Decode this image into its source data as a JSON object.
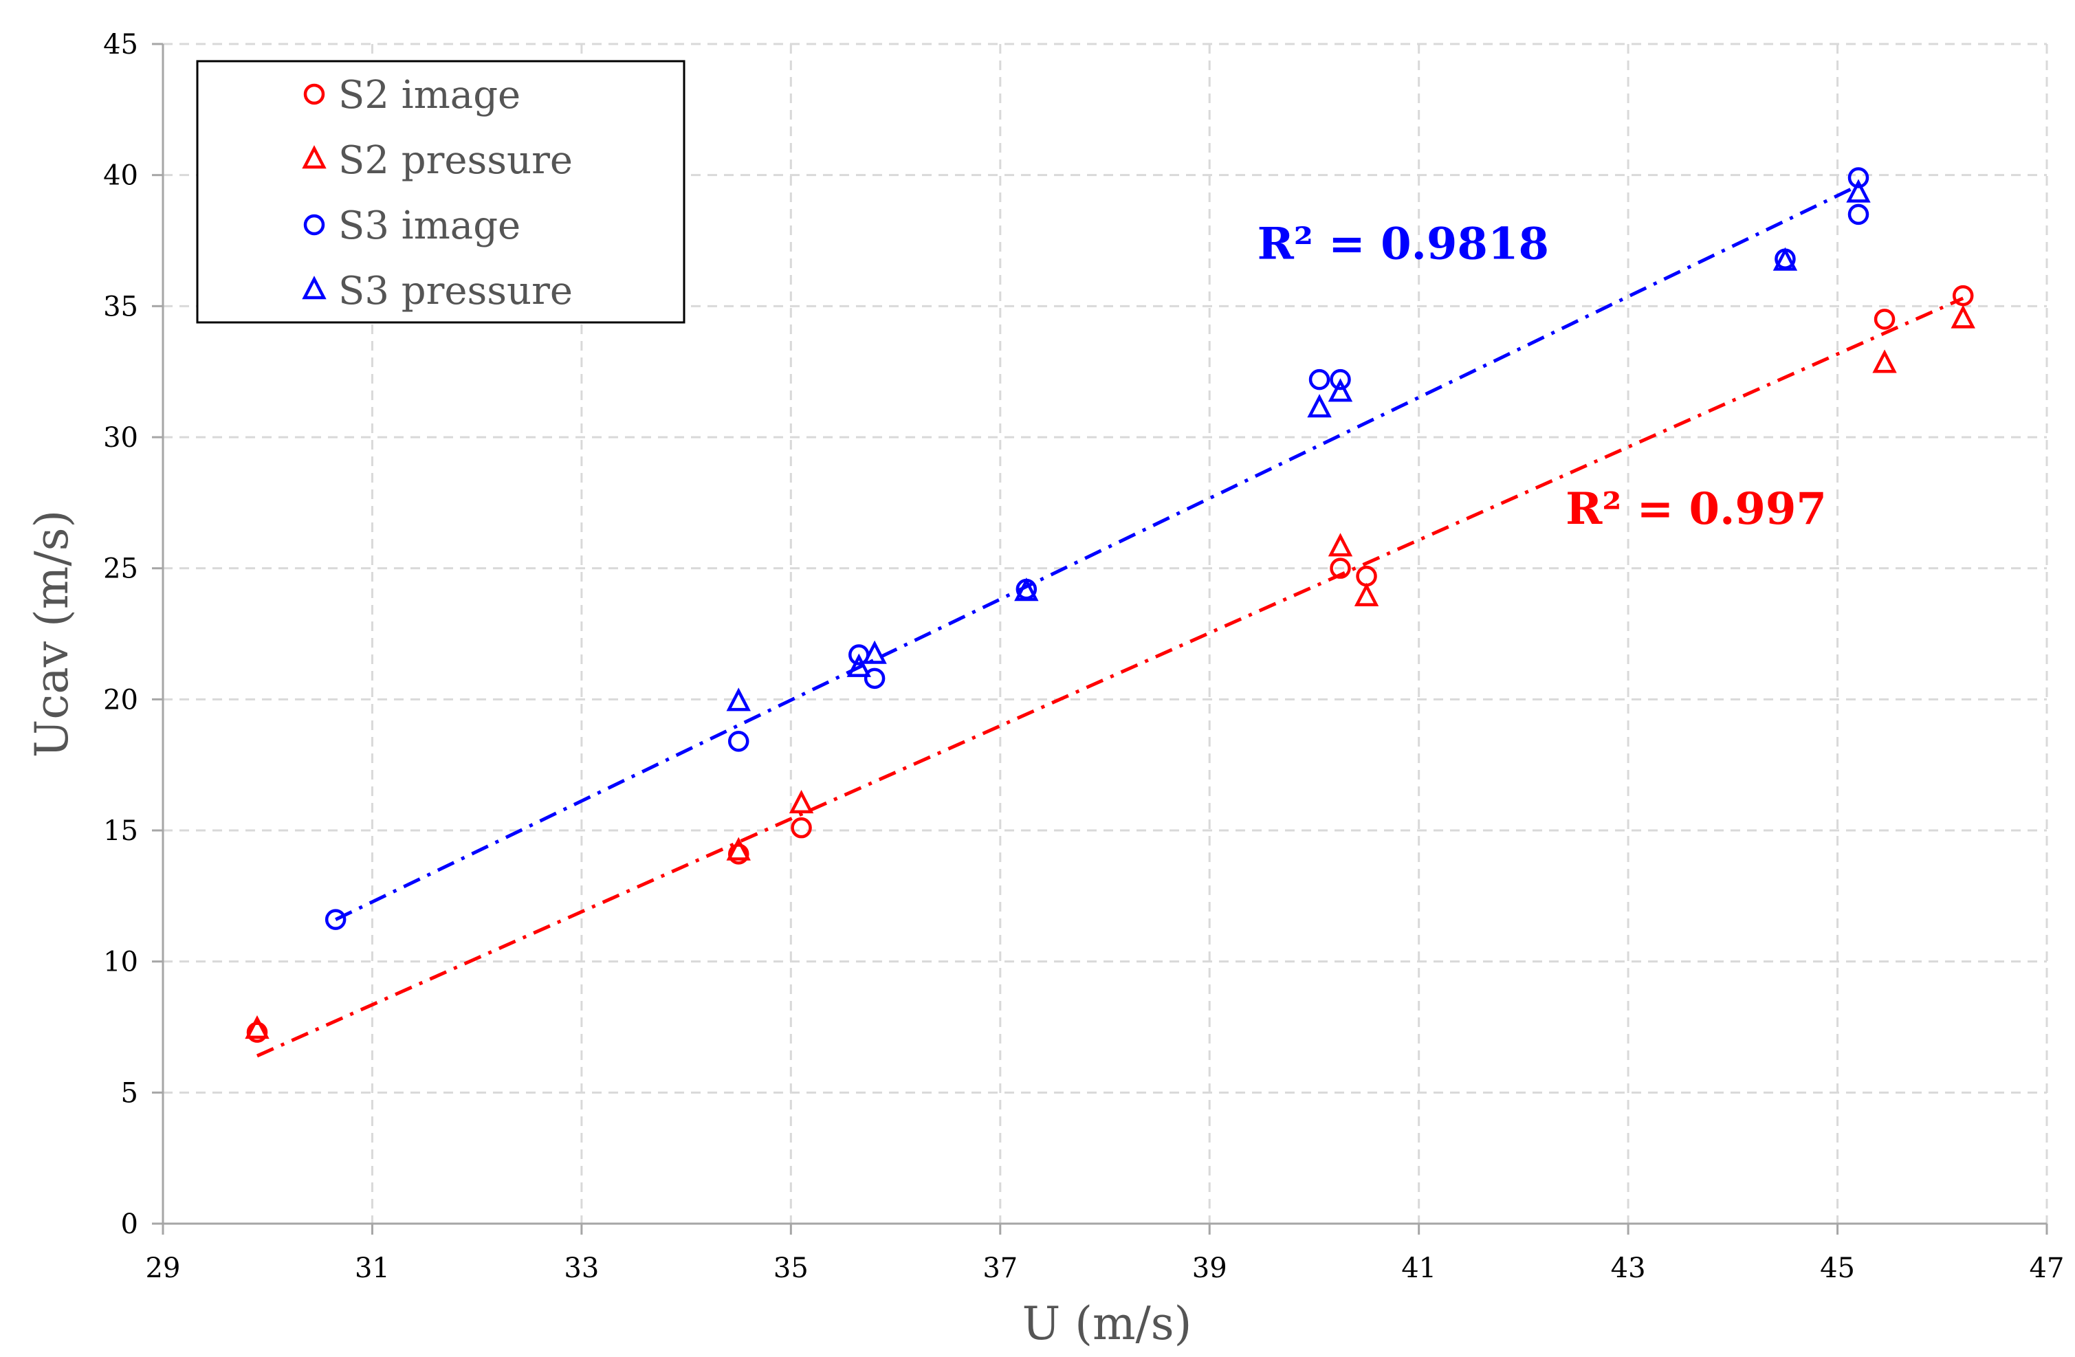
{
  "chart_data": {
    "type": "scatter",
    "xlabel": "U (m/s)",
    "ylabel": "Ucav  (m/s)",
    "xlim": [
      29,
      47
    ],
    "ylim": [
      0,
      45
    ],
    "xticks": [
      29,
      31,
      33,
      35,
      37,
      39,
      41,
      43,
      45,
      47
    ],
    "yticks": [
      0,
      5,
      10,
      15,
      20,
      25,
      30,
      35,
      40,
      45
    ],
    "grid": true,
    "legend_position": "top-left",
    "series": [
      {
        "name": "S2 image",
        "marker": "circle",
        "color": "#ff0000",
        "points": [
          [
            29.9,
            7.3
          ],
          [
            34.5,
            14.1
          ],
          [
            35.1,
            15.1
          ],
          [
            40.25,
            25.0
          ],
          [
            40.5,
            24.7
          ],
          [
            45.45,
            34.5
          ],
          [
            46.2,
            35.4
          ]
        ]
      },
      {
        "name": "S2 pressure",
        "marker": "triangle",
        "color": "#ff0000",
        "points": [
          [
            29.9,
            7.4
          ],
          [
            34.5,
            14.2
          ],
          [
            35.1,
            16.0
          ],
          [
            40.25,
            25.8
          ],
          [
            40.5,
            23.9
          ],
          [
            45.45,
            32.8
          ],
          [
            46.2,
            34.5
          ]
        ]
      },
      {
        "name": "S3 image",
        "marker": "circle",
        "color": "#0000ff",
        "points": [
          [
            30.65,
            11.6
          ],
          [
            34.5,
            18.4
          ],
          [
            35.65,
            21.7
          ],
          [
            35.8,
            20.8
          ],
          [
            37.25,
            24.2
          ],
          [
            40.05,
            32.2
          ],
          [
            40.25,
            32.2
          ],
          [
            44.5,
            36.8
          ],
          [
            45.2,
            39.9
          ],
          [
            45.2,
            38.5
          ]
        ]
      },
      {
        "name": "S3 pressure",
        "marker": "triangle",
        "color": "#0000ff",
        "points": [
          [
            34.5,
            19.9
          ],
          [
            35.65,
            21.2
          ],
          [
            35.8,
            21.7
          ],
          [
            37.25,
            24.1
          ],
          [
            40.05,
            31.1
          ],
          [
            40.25,
            31.7
          ],
          [
            44.5,
            36.7
          ],
          [
            45.2,
            39.3
          ]
        ]
      }
    ],
    "trendlines": [
      {
        "color": "#0000ff",
        "from": [
          30.65,
          11.6
        ],
        "to": [
          45.2,
          39.6
        ],
        "style": "dash-dot"
      },
      {
        "color": "#ff0000",
        "from": [
          29.9,
          6.4
        ],
        "to": [
          46.2,
          35.3
        ],
        "style": "dash-dot"
      }
    ],
    "annotations": [
      {
        "text": "R² = 0.9818",
        "color": "#0000ff",
        "x": 40.85,
        "y": 36.8
      },
      {
        "text": "R² = 0.997",
        "color": "#ff0000",
        "x": 43.65,
        "y": 26.7
      }
    ]
  }
}
